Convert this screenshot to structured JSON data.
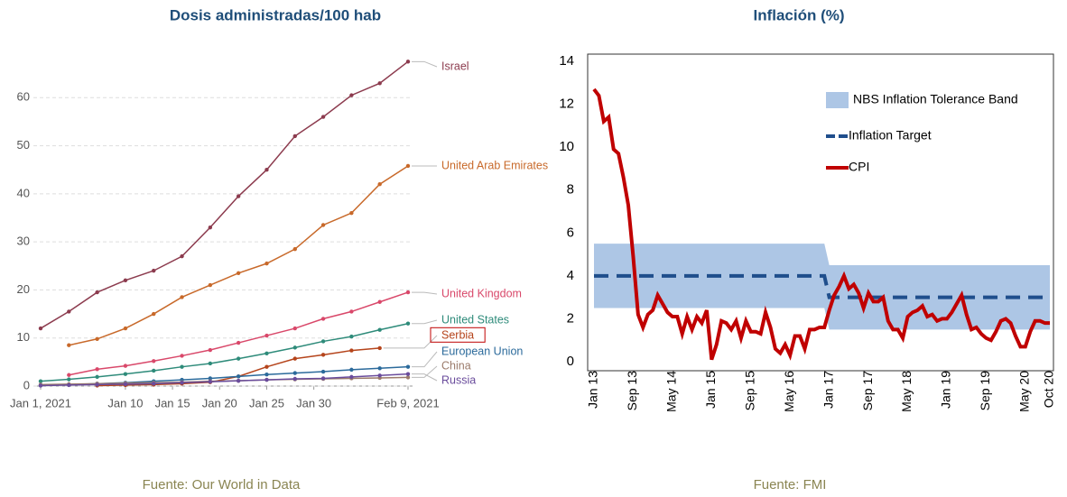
{
  "chart_data": [
    {
      "type": "line",
      "title": "Dosis administradas/100 hab",
      "source": "Fuente: Our World in Data",
      "x": [
        "2021-01-01",
        "2021-01-04",
        "2021-01-07",
        "2021-01-10",
        "2021-01-13",
        "2021-01-16",
        "2021-01-19",
        "2021-01-22",
        "2021-01-25",
        "2021-01-28",
        "2021-01-31",
        "2021-02-03",
        "2021-02-06",
        "2021-02-09"
      ],
      "xlim": [
        "2021-01-01",
        "2021-02-09"
      ],
      "xticks": [
        {
          "value": "2021-01-01",
          "label": "Jan 1, 2021"
        },
        {
          "value": "2021-01-10",
          "label": "Jan 10"
        },
        {
          "value": "2021-01-15",
          "label": "Jan 15"
        },
        {
          "value": "2021-01-20",
          "label": "Jan 20"
        },
        {
          "value": "2021-01-25",
          "label": "Jan 25"
        },
        {
          "value": "2021-01-30",
          "label": "Jan 30"
        },
        {
          "value": "2021-02-09",
          "label": "Feb 9, 2021"
        }
      ],
      "ylim": [
        0,
        70
      ],
      "yticks": [
        0,
        10,
        20,
        30,
        40,
        50,
        60
      ],
      "grid": true,
      "series": [
        {
          "name": "Israel",
          "color": "#8c3b4e",
          "values": [
            12,
            15.5,
            19.5,
            22,
            24,
            27,
            33,
            39.5,
            45,
            52,
            56,
            60.5,
            63,
            67.5
          ]
        },
        {
          "name": "United Arab Emirates",
          "color": "#c8692a",
          "values": [
            null,
            8.5,
            9.8,
            12,
            15,
            18.5,
            21,
            23.5,
            25.5,
            28.5,
            33.5,
            36,
            42,
            45.8
          ]
        },
        {
          "name": "United Kingdom",
          "color": "#d9486a",
          "values": [
            null,
            2.3,
            3.5,
            4.2,
            5.2,
            6.3,
            7.5,
            9,
            10.5,
            12,
            14,
            15.5,
            17.5,
            19.5
          ]
        },
        {
          "name": "United States",
          "color": "#2e8b7a",
          "values": [
            1,
            1.4,
            1.9,
            2.5,
            3.2,
            4,
            4.7,
            5.7,
            6.8,
            8,
            9.3,
            10.3,
            11.7,
            13
          ]
        },
        {
          "name": "Serbia",
          "color": "#b5441b",
          "label_box": "#c00000",
          "values": [
            null,
            null,
            0.1,
            0.2,
            0.3,
            0.5,
            0.8,
            2,
            4,
            5.7,
            6.5,
            7.4,
            7.9,
            null
          ]
        },
        {
          "name": "European Union",
          "color": "#2b6a9b",
          "values": [
            0.1,
            0.3,
            0.5,
            0.7,
            1,
            1.3,
            1.6,
            2,
            2.4,
            2.7,
            3,
            3.4,
            3.7,
            4
          ]
        },
        {
          "name": "China",
          "color": "#9b7b6b",
          "values": [
            0.3,
            0.4,
            0.5,
            0.6,
            0.7,
            0.8,
            1,
            1.1,
            1.3,
            1.4,
            1.5,
            1.6,
            1.7,
            1.8
          ]
        },
        {
          "name": "Russia",
          "color": "#6a4c9c",
          "values": [
            0.1,
            0.2,
            0.3,
            0.4,
            0.5,
            0.7,
            0.9,
            1.1,
            1.3,
            1.5,
            1.6,
            1.9,
            2.2,
            2.5
          ]
        }
      ]
    },
    {
      "type": "line",
      "title": "Inflación (%)",
      "source": "Fuente: FMI",
      "categories": [
        "Jan 13",
        null,
        null,
        null,
        null,
        null,
        null,
        null,
        "Sep 13",
        null,
        null,
        null,
        null,
        null,
        null,
        null,
        "May 14",
        null,
        null,
        null,
        null,
        null,
        null,
        null,
        "Jan 15",
        null,
        null,
        null,
        null,
        null,
        null,
        null,
        "Sep 15",
        null,
        null,
        null,
        null,
        null,
        null,
        null,
        "May 16",
        null,
        null,
        null,
        null,
        null,
        null,
        null,
        "Jan 17",
        null,
        null,
        null,
        null,
        null,
        null,
        null,
        "Sep 17",
        null,
        null,
        null,
        null,
        null,
        null,
        null,
        "May 18",
        null,
        null,
        null,
        null,
        null,
        null,
        null,
        "Jan 19",
        null,
        null,
        null,
        null,
        null,
        null,
        null,
        "Sep 19",
        null,
        null,
        null,
        null,
        null,
        null,
        null,
        "May 20",
        null,
        null,
        null,
        null,
        "Oct 20"
      ],
      "ylim": [
        0,
        14
      ],
      "yticks": [
        0,
        2,
        4,
        6,
        8,
        10,
        12,
        14
      ],
      "grid": false,
      "legend": "upper right",
      "series": [
        {
          "name": "NBS Inflation Tolerance Band",
          "color": "#adc6e5",
          "kind": "band",
          "lower": [
            2.5,
            2.5,
            2.5,
            2.5,
            2.5,
            2.5,
            2.5,
            2.5,
            2.5,
            2.5,
            2.5,
            2.5,
            2.5,
            2.5,
            2.5,
            2.5,
            2.5,
            2.5,
            2.5,
            2.5,
            2.5,
            2.5,
            2.5,
            2.5,
            2.5,
            2.5,
            2.5,
            2.5,
            2.5,
            2.5,
            2.5,
            2.5,
            2.5,
            2.5,
            2.5,
            2.5,
            2.5,
            2.5,
            2.5,
            2.5,
            2.5,
            2.5,
            2.5,
            2.5,
            2.5,
            2.5,
            2.5,
            2.5,
            1.5,
            1.5,
            1.5,
            1.5,
            1.5,
            1.5,
            1.5,
            1.5,
            1.5,
            1.5,
            1.5,
            1.5,
            1.5,
            1.5,
            1.5,
            1.5,
            1.5,
            1.5,
            1.5,
            1.5,
            1.5,
            1.5,
            1.5,
            1.5,
            1.5,
            1.5,
            1.5,
            1.5,
            1.5,
            1.5,
            1.5,
            1.5,
            1.5,
            1.5,
            1.5,
            1.5,
            1.5,
            1.5,
            1.5,
            1.5,
            1.5,
            1.5,
            1.5,
            1.5,
            1.5,
            1.5
          ],
          "upper": [
            5.5,
            5.5,
            5.5,
            5.5,
            5.5,
            5.5,
            5.5,
            5.5,
            5.5,
            5.5,
            5.5,
            5.5,
            5.5,
            5.5,
            5.5,
            5.5,
            5.5,
            5.5,
            5.5,
            5.5,
            5.5,
            5.5,
            5.5,
            5.5,
            5.5,
            5.5,
            5.5,
            5.5,
            5.5,
            5.5,
            5.5,
            5.5,
            5.5,
            5.5,
            5.5,
            5.5,
            5.5,
            5.5,
            5.5,
            5.5,
            5.5,
            5.5,
            5.5,
            5.5,
            5.5,
            5.5,
            5.5,
            5.5,
            4.5,
            4.5,
            4.5,
            4.5,
            4.5,
            4.5,
            4.5,
            4.5,
            4.5,
            4.5,
            4.5,
            4.5,
            4.5,
            4.5,
            4.5,
            4.5,
            4.5,
            4.5,
            4.5,
            4.5,
            4.5,
            4.5,
            4.5,
            4.5,
            4.5,
            4.5,
            4.5,
            4.5,
            4.5,
            4.5,
            4.5,
            4.5,
            4.5,
            4.5,
            4.5,
            4.5,
            4.5,
            4.5,
            4.5,
            4.5,
            4.5,
            4.5,
            4.5,
            4.5,
            4.5,
            4.5
          ]
        },
        {
          "name": "Inflation Target",
          "color": "#1f4e8c",
          "style": "dashed",
          "values": [
            4,
            4,
            4,
            4,
            4,
            4,
            4,
            4,
            4,
            4,
            4,
            4,
            4,
            4,
            4,
            4,
            4,
            4,
            4,
            4,
            4,
            4,
            4,
            4,
            4,
            4,
            4,
            4,
            4,
            4,
            4,
            4,
            4,
            4,
            4,
            4,
            4,
            4,
            4,
            4,
            4,
            4,
            4,
            4,
            4,
            4,
            4,
            4,
            3,
            3,
            3,
            3,
            3,
            3,
            3,
            3,
            3,
            3,
            3,
            3,
            3,
            3,
            3,
            3,
            3,
            3,
            3,
            3,
            3,
            3,
            3,
            3,
            3,
            3,
            3,
            3,
            3,
            3,
            3,
            3,
            3,
            3,
            3,
            3,
            3,
            3,
            3,
            3,
            3,
            3,
            3,
            3,
            3,
            3
          ]
        },
        {
          "name": "CPI",
          "color": "#c00000",
          "values": [
            12.7,
            12.4,
            11.2,
            11.4,
            9.9,
            9.7,
            8.6,
            7.3,
            4.9,
            2.2,
            1.6,
            2.2,
            2.4,
            3.1,
            2.7,
            2.3,
            2.1,
            2.1,
            1.3,
            2.1,
            1.5,
            2.1,
            1.8,
            2.4,
            0.1,
            0.8,
            1.9,
            1.8,
            1.5,
            1.9,
            1.1,
            1.9,
            1.4,
            1.4,
            1.3,
            2.3,
            1.6,
            0.6,
            0.4,
            0.8,
            0.3,
            1.2,
            1.2,
            0.6,
            1.5,
            1.5,
            1.6,
            1.6,
            2.4,
            3.1,
            3.5,
            4.0,
            3.4,
            3.6,
            3.2,
            2.5,
            3.2,
            2.8,
            2.8,
            3.0,
            1.9,
            1.5,
            1.5,
            1.1,
            2.1,
            2.3,
            2.4,
            2.6,
            2.1,
            2.2,
            1.9,
            2.0,
            2.0,
            2.3,
            2.7,
            3.1,
            2.2,
            1.5,
            1.6,
            1.3,
            1.1,
            1.0,
            1.4,
            1.9,
            2.0,
            1.8,
            1.2,
            0.7,
            0.7,
            1.4,
            1.9,
            1.9,
            1.8,
            1.8
          ]
        }
      ]
    }
  ]
}
